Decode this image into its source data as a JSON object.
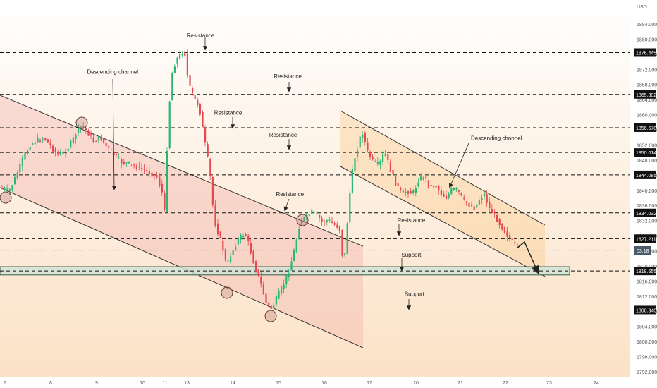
{
  "chart_data": {
    "type": "candlestick",
    "instrument": "",
    "currency_label": "USD",
    "countdown_label": "03:18",
    "current_price_label": "1822.00",
    "x_ticks": [
      "7",
      "8",
      "9",
      "10",
      "11",
      "13",
      "14",
      "15",
      "16",
      "17",
      "20",
      "21",
      "22",
      "23",
      "24"
    ],
    "y_ticks": [
      1884,
      1880,
      1876,
      1872,
      1868,
      1864,
      1860,
      1856,
      1852,
      1848,
      1844,
      1840,
      1836,
      1832,
      1828,
      1824,
      1820,
      1816,
      1812,
      1808,
      1804,
      1800,
      1796,
      1792
    ],
    "y_tick_labels": [
      "1884.000",
      "1880.000",
      "1876.000",
      "1872.000",
      "1868.000",
      "1864.000",
      "1860.000",
      "1856.000",
      "1852.000",
      "1848.000",
      "1844.000",
      "1840.000",
      "1836.000",
      "1832.000",
      "1828.000",
      "1824.000",
      "1820.000",
      "1816.000",
      "1812.000",
      "1808.000",
      "1804.000",
      "1800.000",
      "1796.000",
      "1792.000"
    ],
    "ylim": [
      1790,
      1890
    ],
    "levels": [
      {
        "price": 1876.445,
        "label": "1876.445"
      },
      {
        "price": 1865.382,
        "label": "1865.382"
      },
      {
        "price": 1856.578,
        "label": "1856.578"
      },
      {
        "price": 1850.014,
        "label": "1850.014"
      },
      {
        "price": 1844.085,
        "label": "1844.085"
      },
      {
        "price": 1834.032,
        "label": "1834.032"
      },
      {
        "price": 1827.211,
        "label": "1827.211"
      },
      {
        "price": 1818.655,
        "label": "1818.655"
      },
      {
        "price": 1808.34,
        "label": "1808.340"
      }
    ],
    "support_zone": {
      "from": 1817.6,
      "to": 1819.8
    },
    "annotations": [
      {
        "text": "Resistance",
        "price": 1880.5,
        "day": 13.3
      },
      {
        "text": "Resistance",
        "price": 1869.6,
        "day": 15.2
      },
      {
        "text": "Resistance",
        "price": 1860.0,
        "day": 13.9
      },
      {
        "text": "Resistance",
        "price": 1854.1,
        "day": 15.1
      },
      {
        "text": "Resistance",
        "price": 1838.5,
        "day": 15.25
      },
      {
        "text": "Resistance",
        "price": 1831.6,
        "day": 19.7
      },
      {
        "text": "Support",
        "price": 1822.4,
        "day": 19.7
      },
      {
        "text": "Support",
        "price": 1812.1,
        "day": 19.9
      },
      {
        "text": "Descending channel",
        "price": 1870.8,
        "day": 9.35
      },
      {
        "text": "Descending channel",
        "price": 1853.3,
        "day": 21.8
      }
    ]
  }
}
